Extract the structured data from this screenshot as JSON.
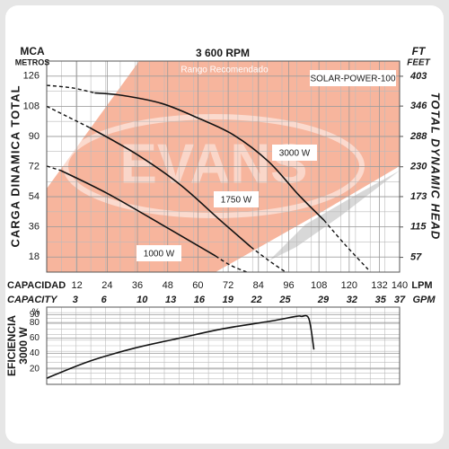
{
  "chart_data": [
    {
      "type": "line",
      "title": "3 600 RPM",
      "model": "SOLAR-POWER-100",
      "region_label": "Rango Recomendado",
      "watermark": "EVANS",
      "y_label": "CARGA DINAMICA TOTAL",
      "y_units": [
        "MCA",
        "METROS"
      ],
      "y2_label": "TOTAL DYNAMIC HEAD",
      "y2_units": [
        "FT",
        "FEET"
      ],
      "x_label": "CAPACIDAD",
      "x_unit": "LPM",
      "x2_label": "CAPACITY",
      "x2_unit": "GPM",
      "xlim": [
        0,
        140
      ],
      "xticks": [
        12,
        24,
        36,
        48,
        60,
        72,
        84,
        96,
        108,
        120,
        132,
        140
      ],
      "x2lim": [
        0,
        37
      ],
      "x2ticks": [
        3,
        6,
        10,
        13,
        16,
        19,
        22,
        25,
        29,
        32,
        35,
        37
      ],
      "ylim": [
        9,
        135
      ],
      "yticks": [
        18,
        36,
        54,
        72,
        90,
        108,
        126
      ],
      "y2lim": [
        28.8,
        432
      ],
      "y2ticks": [
        57,
        115,
        173,
        230,
        288,
        346,
        403
      ],
      "grid": true,
      "series": [
        {
          "name": "3000 W",
          "color": "#111111",
          "x": [
            19,
            30,
            45.6,
            60,
            74,
            88,
            100,
            110
          ],
          "values": [
            116,
            114.5,
            109.7,
            101,
            91,
            75,
            55,
            40
          ]
        },
        {
          "dashed": true,
          "color": "#111111",
          "x": [
            0,
            10,
            19
          ],
          "values": [
            120.5,
            119,
            116
          ]
        },
        {
          "dashed": true,
          "color": "#111111",
          "x": [
            110,
            118,
            127.5
          ],
          "values": [
            40,
            26,
            10.6
          ]
        },
        {
          "name": "1750 W",
          "color": "#111111",
          "x": [
            17,
            35,
            52.7,
            68.8,
            81
          ],
          "values": [
            95.3,
            80,
            61.5,
            40,
            24
          ]
        },
        {
          "dashed": true,
          "color": "#111111",
          "x": [
            0,
            8,
            17
          ],
          "values": [
            108,
            102,
            95.3
          ]
        },
        {
          "dashed": true,
          "color": "#111111",
          "x": [
            81,
            88,
            94.8
          ],
          "values": [
            24,
            16,
            9
          ]
        },
        {
          "name": "1000 W",
          "color": "#111111",
          "x": [
            5.7,
            24,
            45.6,
            67
          ],
          "values": [
            69.6,
            56,
            37.4,
            18.6
          ]
        },
        {
          "dashed": true,
          "color": "#111111",
          "x": [
            0,
            5.7
          ],
          "values": [
            72.3,
            69.6
          ]
        },
        {
          "dashed": true,
          "color": "#111111",
          "x": [
            67,
            73,
            79.4
          ],
          "values": [
            18.6,
            13,
            9
          ]
        }
      ]
    },
    {
      "type": "line",
      "y_label": [
        "EFICIENCIA",
        "3000 W"
      ],
      "y_unit": "%",
      "xlim": [
        0,
        140
      ],
      "ylim": [
        0,
        100
      ],
      "yticks": [
        20,
        40,
        60,
        80,
        90
      ],
      "grid": true,
      "series": [
        {
          "color": "#111111",
          "x": [
            0,
            17,
            35,
            53,
            70,
            89,
            99,
            101,
            104,
            106
          ],
          "values": [
            8,
            30,
            47,
            60,
            72,
            82,
            88,
            88,
            85,
            45
          ]
        }
      ]
    }
  ]
}
